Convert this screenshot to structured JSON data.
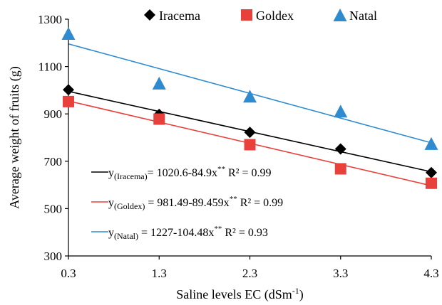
{
  "chart_data": {
    "type": "scatter",
    "xlabel": "Saline levels EC (dSm",
    "xlabel_sup": "-1",
    "xlabel_end": ")",
    "ylabel": "Average weight of fruits (g)",
    "xlim": [
      0.3,
      4.3
    ],
    "ylim": [
      300,
      1300
    ],
    "xticks": [
      "0.3",
      "1.3",
      "2.3",
      "3.3",
      "4.3"
    ],
    "yticks": [
      "300",
      "500",
      "700",
      "900",
      "1100",
      "1300"
    ],
    "xtick_values": [
      0.3,
      1.3,
      2.3,
      3.3,
      4.3
    ],
    "ytick_values": [
      300,
      500,
      700,
      900,
      1100,
      1300
    ],
    "grid": false,
    "legend_position": "top",
    "series": [
      {
        "name": "Iracema",
        "marker": "diamond",
        "color": "#000000",
        "x": [
          0.3,
          1.3,
          2.3,
          3.3,
          4.3
        ],
        "y": [
          1002,
          898,
          822,
          752,
          652
        ],
        "trend": {
          "intercept": 1020.6,
          "slope": -84.9
        },
        "eq": {
          "pre": "y",
          "sub": "(Iracema)",
          "body": "= 1020.6-84.9x",
          "sup": "**",
          "r2": "R² = 0.99"
        }
      },
      {
        "name": "Goldex",
        "marker": "square",
        "color": "#e8413c",
        "x": [
          0.3,
          1.3,
          2.3,
          3.3,
          4.3
        ],
        "y": [
          952,
          878,
          770,
          668,
          607
        ],
        "trend": {
          "intercept": 981.49,
          "slope": -89.459
        },
        "eq": {
          "pre": "y",
          "sub": "(Goldex)",
          "body": " = 981.49-89.459x",
          "sup": "**",
          "r2": "R² = 0.99"
        }
      },
      {
        "name": "Natal",
        "marker": "triangle",
        "color": "#2e8bd0",
        "x": [
          0.3,
          1.3,
          2.3,
          3.3,
          4.3
        ],
        "y": [
          1240,
          1030,
          975,
          912,
          775
        ],
        "trend": {
          "intercept": 1227,
          "slope": -104.48
        },
        "eq": {
          "pre": "y",
          "sub": "(Natal)",
          "body": " = 1227-104.48x",
          "sup": "**",
          "r2": "R² = 0.93"
        }
      }
    ]
  }
}
